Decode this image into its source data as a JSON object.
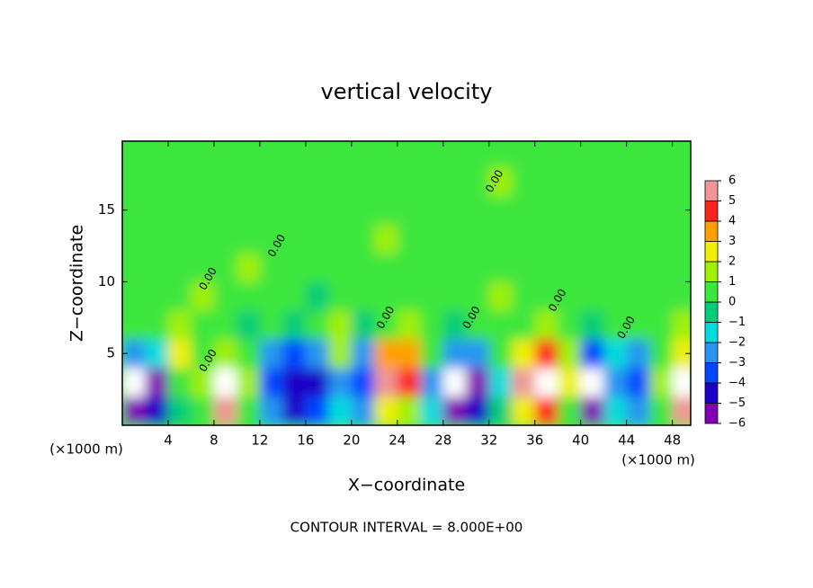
{
  "chart_data": {
    "type": "contourf",
    "title": "vertical velocity",
    "xlabel": "X−coordinate",
    "ylabel": "Z−coordinate",
    "x_unit_left": "(×1000 m)",
    "x_unit_right": "(×1000 m)",
    "footer": "CONTOUR INTERVAL = 8.000E+00",
    "xlim": [
      0,
      49.6
    ],
    "ylim": [
      0,
      19.8
    ],
    "xticks": [
      4,
      8,
      12,
      16,
      20,
      24,
      28,
      32,
      36,
      40,
      44,
      48
    ],
    "yticks": [
      5,
      10,
      15
    ],
    "levels": [
      -6,
      -5,
      -4,
      -3,
      -2,
      -1,
      0,
      1,
      2,
      3,
      4,
      5,
      6
    ],
    "level_labels": [
      {
        "value": -6,
        "label": "−6"
      },
      {
        "value": -5,
        "label": "−5"
      },
      {
        "value": -4,
        "label": "−4"
      },
      {
        "value": -3,
        "label": "−3"
      },
      {
        "value": -2,
        "label": "−2"
      },
      {
        "value": -1,
        "label": "−1"
      },
      0,
      1,
      2,
      3,
      4,
      5,
      6
    ],
    "colors": [
      "#8200b4",
      "#1e00c8",
      "#0046ff",
      "#2896f0",
      "#00dcdc",
      "#00cd78",
      "#3ce63c",
      "#a0f000",
      "#f0f000",
      "#ffa000",
      "#ff2020",
      "#f09696"
    ],
    "out_of_range_color": "#ffffff",
    "field": {
      "x": [
        1,
        3,
        5,
        7,
        9,
        11,
        13,
        15,
        17,
        19,
        21,
        23,
        25,
        27,
        29,
        31,
        33,
        35,
        37,
        39,
        41,
        43,
        45,
        47,
        49
      ],
      "z": [
        1,
        3,
        5,
        7,
        9,
        11,
        13,
        15,
        17,
        19
      ],
      "values": [
        [
          -5,
          -4,
          0,
          1,
          6,
          1,
          -2,
          -4,
          -3,
          -1,
          -2,
          3,
          2,
          -1,
          -5,
          -4,
          0,
          3,
          5,
          1,
          -6,
          -1,
          -2,
          1,
          6
        ],
        [
          -7,
          -5,
          1,
          2,
          7,
          2,
          -3,
          -4,
          -4,
          -2,
          -3,
          6,
          5,
          -2,
          -7,
          -6,
          -1,
          6,
          7,
          3,
          -7,
          -2,
          -3,
          2,
          7
        ],
        [
          -2,
          -1,
          3,
          1,
          2,
          0.2,
          -2,
          -3,
          -2,
          2,
          -2,
          4,
          4,
          1,
          -2,
          -2,
          0.2,
          3,
          5,
          2,
          -3,
          -1,
          -2,
          0.2,
          3
        ],
        [
          0.2,
          0.2,
          1.2,
          0.2,
          0.2,
          -0.4,
          0.2,
          -0.4,
          0.2,
          1.2,
          -0.4,
          0.2,
          1.2,
          0.2,
          -0.4,
          0.2,
          0.2,
          0.2,
          1.2,
          0.2,
          -0.4,
          0.2,
          0.2,
          0.2,
          1.2
        ],
        [
          0.6,
          0.2,
          0.2,
          1.2,
          0.2,
          0.2,
          0.6,
          0.2,
          -0.4,
          0.2,
          0.6,
          0.2,
          0.2,
          0.6,
          0.2,
          0.2,
          1.2,
          0.2,
          0.2,
          0.6,
          0.2,
          0.2,
          0.6,
          0.2,
          0.2
        ],
        [
          0.6,
          0.2,
          0.6,
          0.2,
          0.2,
          1.2,
          0.6,
          0.2,
          0.2,
          0.6,
          0.2,
          0.6,
          0.6,
          0.2,
          0.2,
          0.6,
          0.2,
          0.2,
          0.6,
          0.2,
          0.2,
          0.6,
          0.2,
          0.6,
          0.2
        ],
        [
          0.2,
          0.6,
          0.2,
          0.2,
          0.6,
          0.2,
          0.2,
          0.6,
          0.6,
          0.2,
          0.6,
          1.4,
          0.2,
          0.6,
          0.2,
          0.2,
          0.6,
          0.6,
          0.2,
          0.2,
          0.6,
          0.2,
          0.2,
          0.6,
          0.6
        ],
        [
          0.2,
          0.2,
          0.6,
          0.6,
          0.2,
          0.2,
          0.6,
          0.2,
          0.2,
          0.6,
          0.2,
          0.6,
          0.2,
          0.2,
          0.6,
          0.2,
          0.2,
          0.6,
          0.2,
          0.6,
          0.6,
          0.2,
          0.6,
          0.2,
          0.2
        ],
        [
          0.6,
          0.2,
          0.2,
          0.2,
          0.6,
          0.6,
          0.2,
          0.2,
          0.6,
          0.2,
          0.2,
          0.6,
          0.6,
          0.2,
          0.2,
          0.6,
          1.2,
          0.2,
          0.2,
          0.2,
          0.2,
          0.6,
          0.2,
          0.2,
          0.6
        ],
        [
          0.2,
          0.6,
          0.6,
          0.2,
          0.2,
          0.2,
          0.6,
          0.6,
          0.2,
          0.2,
          0.6,
          0.2,
          0.2,
          0.6,
          0.2,
          0.6,
          0.6,
          0.2,
          0.6,
          0.2,
          0.6,
          0.2,
          0.2,
          0.6,
          0.2
        ]
      ]
    },
    "contour_labels": [
      {
        "text": "0.00",
        "x": 7.5,
        "z": 10.2
      },
      {
        "text": "0.00",
        "x": 7.5,
        "z": 4.5
      },
      {
        "text": "0.00",
        "x": 13.5,
        "z": 12.5
      },
      {
        "text": "0.00",
        "x": 23,
        "z": 7.5
      },
      {
        "text": "0.00",
        "x": 30.5,
        "z": 7.5
      },
      {
        "text": "0.00",
        "x": 32.5,
        "z": 17
      },
      {
        "text": "0.00",
        "x": 38,
        "z": 8.7
      },
      {
        "text": "0.00",
        "x": 44,
        "z": 6.8
      }
    ]
  }
}
